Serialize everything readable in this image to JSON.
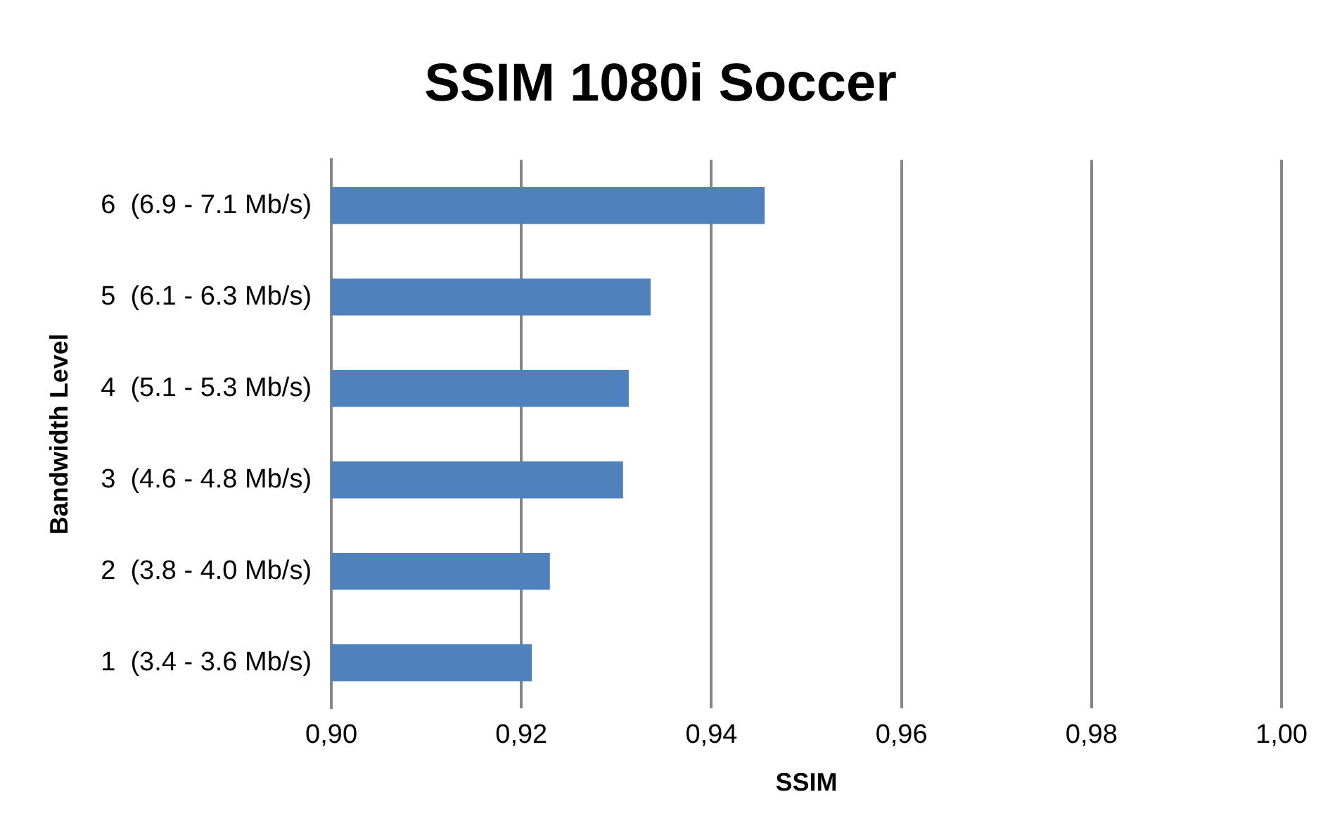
{
  "chart_data": {
    "type": "bar",
    "orientation": "horizontal",
    "title": "SSIM 1080i Soccer",
    "xlabel": "SSIM",
    "ylabel": "Bandwidth Level",
    "categories": [
      "6  (6.9 - 7.1 Mb/s)",
      "5  (6.1 - 6.3 Mb/s)",
      "4  (5.1 - 5.3 Mb/s)",
      "3  (4.6 - 4.8 Mb/s)",
      "2  (3.8 - 4.0 Mb/s)",
      "1  (3.4 - 3.6 Mb/s)"
    ],
    "values": [
      0.9456,
      0.9336,
      0.9313,
      0.9307,
      0.923,
      0.9211
    ],
    "color": "#4f81bd",
    "xlim": [
      0.9,
      1.0
    ],
    "xticks": [
      {
        "value": 0.9,
        "label": "0,90"
      },
      {
        "value": 0.92,
        "label": "0,92"
      },
      {
        "value": 0.94,
        "label": "0,94"
      },
      {
        "value": 0.96,
        "label": "0,96"
      },
      {
        "value": 0.98,
        "label": "0,98"
      },
      {
        "value": 1.0,
        "label": "1,00"
      }
    ],
    "grid": "x",
    "legend": false
  }
}
